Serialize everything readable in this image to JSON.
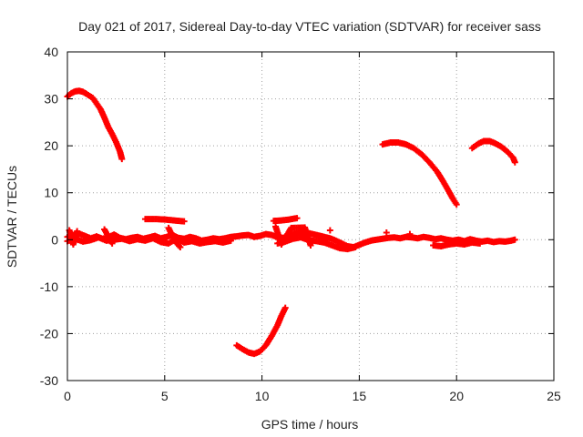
{
  "chart_data": {
    "type": "scatter",
    "title": "Day 021 of 2017, Sidereal Day-to-day VTEC variation (SDTVAR) for receiver sass",
    "xlabel": "GPS time / hours",
    "ylabel": "SDTVAR / TECUs",
    "xlim": [
      0,
      25
    ],
    "ylim": [
      -30,
      40
    ],
    "xticks": [
      0,
      5,
      10,
      15,
      20,
      25
    ],
    "yticks": [
      -30,
      -20,
      -10,
      0,
      10,
      20,
      30,
      40
    ],
    "grid": true,
    "legend": "none",
    "marker_color": "#ff0000",
    "series": [
      {
        "name": "arc-1",
        "points": [
          [
            0.0,
            30.5
          ],
          [
            0.2,
            31.2
          ],
          [
            0.4,
            31.6
          ],
          [
            0.6,
            31.7
          ],
          [
            0.8,
            31.5
          ],
          [
            1.0,
            31.0
          ],
          [
            1.3,
            30.2
          ],
          [
            1.5,
            29.0
          ],
          [
            1.7,
            27.8
          ],
          [
            1.9,
            26.0
          ],
          [
            2.1,
            24.0
          ],
          [
            2.3,
            22.5
          ],
          [
            2.5,
            20.8
          ],
          [
            2.7,
            18.8
          ],
          [
            2.8,
            17.2
          ]
        ]
      },
      {
        "name": "arc-2",
        "points": [
          [
            4.0,
            4.4
          ],
          [
            4.5,
            4.4
          ],
          [
            5.0,
            4.3
          ],
          [
            5.5,
            4.1
          ],
          [
            6.0,
            3.9
          ]
        ]
      },
      {
        "name": "arc-3",
        "points": [
          [
            8.7,
            -22.5
          ],
          [
            9.0,
            -23.3
          ],
          [
            9.3,
            -24.0
          ],
          [
            9.6,
            -24.3
          ],
          [
            9.9,
            -23.8
          ],
          [
            10.2,
            -22.5
          ],
          [
            10.5,
            -20.5
          ],
          [
            10.8,
            -18.2
          ],
          [
            11.0,
            -16.2
          ],
          [
            11.2,
            -14.5
          ]
        ]
      },
      {
        "name": "arc-4",
        "points": [
          [
            10.6,
            4.0
          ],
          [
            11.0,
            4.1
          ],
          [
            11.4,
            4.3
          ],
          [
            11.8,
            4.6
          ]
        ]
      },
      {
        "name": "arc-5",
        "points": [
          [
            16.2,
            20.3
          ],
          [
            16.6,
            20.7
          ],
          [
            17.0,
            20.7
          ],
          [
            17.4,
            20.3
          ],
          [
            17.8,
            19.5
          ],
          [
            18.2,
            18.2
          ],
          [
            18.6,
            16.5
          ],
          [
            19.0,
            14.5
          ],
          [
            19.3,
            12.5
          ],
          [
            19.6,
            10.3
          ],
          [
            19.8,
            8.8
          ],
          [
            20.0,
            7.5
          ]
        ]
      },
      {
        "name": "arc-6",
        "points": [
          [
            20.8,
            19.5
          ],
          [
            21.1,
            20.4
          ],
          [
            21.4,
            21.0
          ],
          [
            21.7,
            21.0
          ],
          [
            22.0,
            20.5
          ],
          [
            22.3,
            19.8
          ],
          [
            22.6,
            18.8
          ],
          [
            22.9,
            17.5
          ],
          [
            23.0,
            16.5
          ]
        ]
      },
      {
        "name": "near-zero-band",
        "points": [
          [
            0.0,
            0.6
          ],
          [
            0.3,
            1.0
          ],
          [
            0.6,
            1.3
          ],
          [
            0.9,
            0.8
          ],
          [
            1.2,
            0.3
          ],
          [
            1.5,
            0.7
          ],
          [
            1.8,
            0.2
          ],
          [
            2.1,
            0.5
          ],
          [
            2.4,
            1.1
          ],
          [
            2.7,
            0.4
          ],
          [
            3.0,
            0.1
          ],
          [
            3.3,
            0.4
          ],
          [
            3.6,
            0.6
          ],
          [
            3.9,
            0.2
          ],
          [
            4.2,
            0.5
          ],
          [
            4.5,
            0.8
          ],
          [
            4.8,
            0.3
          ],
          [
            5.1,
            0.6
          ],
          [
            5.4,
            1.0
          ],
          [
            5.7,
            0.4
          ],
          [
            6.0,
            0.2
          ],
          [
            6.3,
            0.6
          ],
          [
            6.6,
            0.3
          ],
          [
            6.9,
            -0.2
          ],
          [
            7.2,
            0.0
          ],
          [
            7.5,
            0.3
          ],
          [
            7.8,
            0.1
          ],
          [
            8.1,
            0.3
          ],
          [
            8.4,
            0.6
          ],
          [
            8.7,
            0.7
          ],
          [
            9.0,
            0.9
          ],
          [
            9.3,
            1.0
          ],
          [
            9.6,
            0.6
          ],
          [
            9.9,
            0.8
          ],
          [
            10.2,
            1.2
          ],
          [
            10.5,
            1.0
          ],
          [
            10.8,
            0.5
          ],
          [
            11.1,
            0.4
          ],
          [
            11.4,
            0.9
          ],
          [
            11.7,
            1.3
          ],
          [
            12.0,
            1.6
          ],
          [
            12.3,
            1.5
          ],
          [
            12.6,
            1.2
          ],
          [
            12.9,
            0.9
          ],
          [
            13.2,
            0.6
          ],
          [
            13.5,
            0.3
          ],
          [
            13.8,
            -0.2
          ],
          [
            14.1,
            -0.8
          ],
          [
            14.4,
            -1.4
          ],
          [
            14.7,
            -1.6
          ],
          [
            15.0,
            -1.1
          ],
          [
            15.3,
            -0.6
          ],
          [
            15.6,
            -0.2
          ],
          [
            15.9,
            0.0
          ],
          [
            16.2,
            0.2
          ],
          [
            16.5,
            0.4
          ],
          [
            16.8,
            0.5
          ],
          [
            17.1,
            0.3
          ],
          [
            17.4,
            0.6
          ],
          [
            17.7,
            0.5
          ],
          [
            18.0,
            0.3
          ],
          [
            18.3,
            0.6
          ],
          [
            18.6,
            0.4
          ],
          [
            18.9,
            0.1
          ],
          [
            19.2,
            0.3
          ],
          [
            19.5,
            0.0
          ],
          [
            19.8,
            -0.2
          ],
          [
            20.1,
            0.0
          ],
          [
            20.4,
            -0.3
          ],
          [
            20.7,
            0.1
          ],
          [
            21.0,
            -0.2
          ],
          [
            21.3,
            -0.4
          ],
          [
            21.6,
            -0.2
          ],
          [
            21.9,
            -0.5
          ],
          [
            22.2,
            -0.3
          ],
          [
            22.5,
            -0.4
          ],
          [
            22.8,
            -0.2
          ],
          [
            23.0,
            0.0
          ]
        ]
      },
      {
        "name": "near-zero-band-2",
        "points": [
          [
            0.0,
            -0.3
          ],
          [
            0.4,
            0.2
          ],
          [
            0.8,
            -0.4
          ],
          [
            1.2,
            -0.1
          ],
          [
            1.6,
            0.5
          ],
          [
            2.0,
            -0.2
          ],
          [
            2.4,
            0.0
          ],
          [
            2.8,
            0.2
          ],
          [
            3.2,
            -0.3
          ],
          [
            3.6,
            0.1
          ],
          [
            4.0,
            -0.2
          ],
          [
            4.4,
            0.3
          ],
          [
            4.8,
            -0.5
          ],
          [
            5.2,
            -0.8
          ],
          [
            5.6,
            0.2
          ],
          [
            6.0,
            -0.6
          ],
          [
            6.4,
            -0.3
          ],
          [
            6.8,
            -0.8
          ],
          [
            7.2,
            -0.5
          ],
          [
            7.6,
            -0.3
          ],
          [
            8.0,
            -0.6
          ],
          [
            8.4,
            -0.2
          ],
          [
            10.8,
            -0.8
          ],
          [
            11.2,
            -0.4
          ],
          [
            11.6,
            0.2
          ],
          [
            12.0,
            0.5
          ],
          [
            12.4,
            -0.1
          ],
          [
            12.8,
            -0.3
          ],
          [
            13.2,
            -0.6
          ],
          [
            13.6,
            -1.2
          ],
          [
            14.0,
            -1.8
          ],
          [
            14.4,
            -2.0
          ],
          [
            14.8,
            -1.6
          ],
          [
            18.8,
            -1.2
          ],
          [
            19.2,
            -1.4
          ],
          [
            19.6,
            -1.0
          ],
          [
            20.0,
            -0.8
          ],
          [
            20.4,
            -1.0
          ],
          [
            20.8,
            -0.6
          ],
          [
            21.2,
            -0.8
          ]
        ]
      },
      {
        "name": "short-tracks",
        "points": [
          [
            0.1,
            2.0
          ],
          [
            0.3,
            -1.0
          ],
          [
            0.5,
            1.8
          ],
          [
            1.9,
            2.2
          ],
          [
            2.3,
            -0.8
          ],
          [
            5.2,
            2.5
          ],
          [
            5.5,
            -0.2
          ],
          [
            5.8,
            -1.6
          ],
          [
            10.7,
            2.8
          ],
          [
            11.0,
            -1.0
          ],
          [
            11.5,
            2.5
          ],
          [
            12.2,
            2.6
          ],
          [
            12.5,
            -1.2
          ],
          [
            13.5,
            2.0
          ],
          [
            16.4,
            1.5
          ],
          [
            17.6,
            1.2
          ]
        ]
      }
    ]
  }
}
